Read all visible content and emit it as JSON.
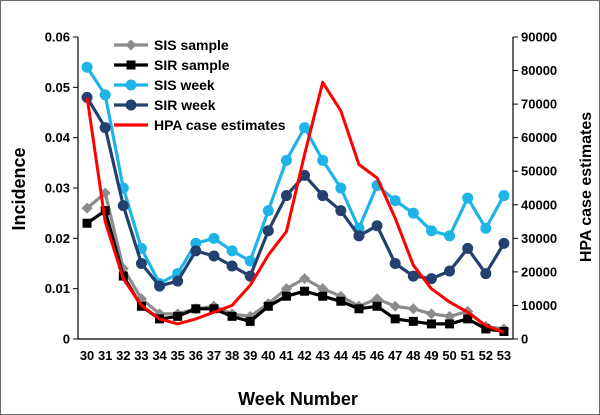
{
  "chart_data": {
    "type": "line",
    "title": "",
    "xlabel": "Week Number",
    "ylabel": "Incidence",
    "y2label": "HPA case estimates",
    "ylim": [
      0,
      0.06
    ],
    "y2lim": [
      0,
      90000
    ],
    "yticks": [
      "0",
      "0.01",
      "0.02",
      "0.03",
      "0.04",
      "0.05",
      "0.06"
    ],
    "y2ticks": [
      "0",
      "10000",
      "20000",
      "30000",
      "40000",
      "50000",
      "60000",
      "70000",
      "80000",
      "90000"
    ],
    "categories": [
      "30",
      "31",
      "32",
      "33",
      "34",
      "35",
      "36",
      "37",
      "38",
      "39",
      "40",
      "41",
      "42",
      "43",
      "44",
      "45",
      "46",
      "47",
      "48",
      "49",
      "50",
      "51",
      "52",
      "53"
    ],
    "grid": false,
    "legend_position": "top-left",
    "series": [
      {
        "name": "SIS sample",
        "axis": "left",
        "color": "#8c8c8c",
        "marker": "diamond",
        "values": [
          0.026,
          0.029,
          0.014,
          0.008,
          0.005,
          0.005,
          0.006,
          0.0065,
          0.005,
          0.0045,
          0.007,
          0.01,
          0.012,
          0.01,
          0.0085,
          0.0065,
          0.008,
          0.0065,
          0.006,
          0.005,
          0.0045,
          0.0055,
          0.0025,
          0.002
        ]
      },
      {
        "name": "SIR sample",
        "axis": "left",
        "color": "#000000",
        "marker": "square",
        "values": [
          0.023,
          0.0255,
          0.0125,
          0.0065,
          0.004,
          0.0045,
          0.006,
          0.006,
          0.0045,
          0.0035,
          0.0065,
          0.0085,
          0.0095,
          0.0085,
          0.0075,
          0.006,
          0.0065,
          0.004,
          0.0035,
          0.003,
          0.003,
          0.004,
          0.002,
          0.0015
        ]
      },
      {
        "name": "SIS week",
        "axis": "left",
        "color": "#1fb4e8",
        "marker": "circle",
        "values": [
          0.054,
          0.0485,
          0.03,
          0.018,
          0.011,
          0.013,
          0.019,
          0.02,
          0.0175,
          0.0155,
          0.0255,
          0.0355,
          0.042,
          0.0355,
          0.03,
          0.022,
          0.0305,
          0.0275,
          0.025,
          0.0215,
          0.0205,
          0.028,
          0.022,
          0.0285
        ]
      },
      {
        "name": "SIR week",
        "axis": "left",
        "color": "#24406e",
        "marker": "circle",
        "values": [
          0.048,
          0.042,
          0.0265,
          0.015,
          0.0105,
          0.0115,
          0.0175,
          0.0165,
          0.0145,
          0.0125,
          0.0215,
          0.0285,
          0.0325,
          0.0285,
          0.0255,
          0.0205,
          0.0225,
          0.015,
          0.0125,
          0.012,
          0.0135,
          0.018,
          0.013,
          0.019
        ]
      },
      {
        "name": "HPA case estimates",
        "axis": "right",
        "color": "#ff0000",
        "marker": "none",
        "values": [
          72000,
          35000,
          18000,
          10000,
          6000,
          4500,
          6000,
          8000,
          10000,
          16000,
          25000,
          32000,
          55000,
          76500,
          68000,
          52000,
          48000,
          36000,
          22000,
          15000,
          11000,
          8000,
          4000,
          2000
        ]
      }
    ]
  }
}
